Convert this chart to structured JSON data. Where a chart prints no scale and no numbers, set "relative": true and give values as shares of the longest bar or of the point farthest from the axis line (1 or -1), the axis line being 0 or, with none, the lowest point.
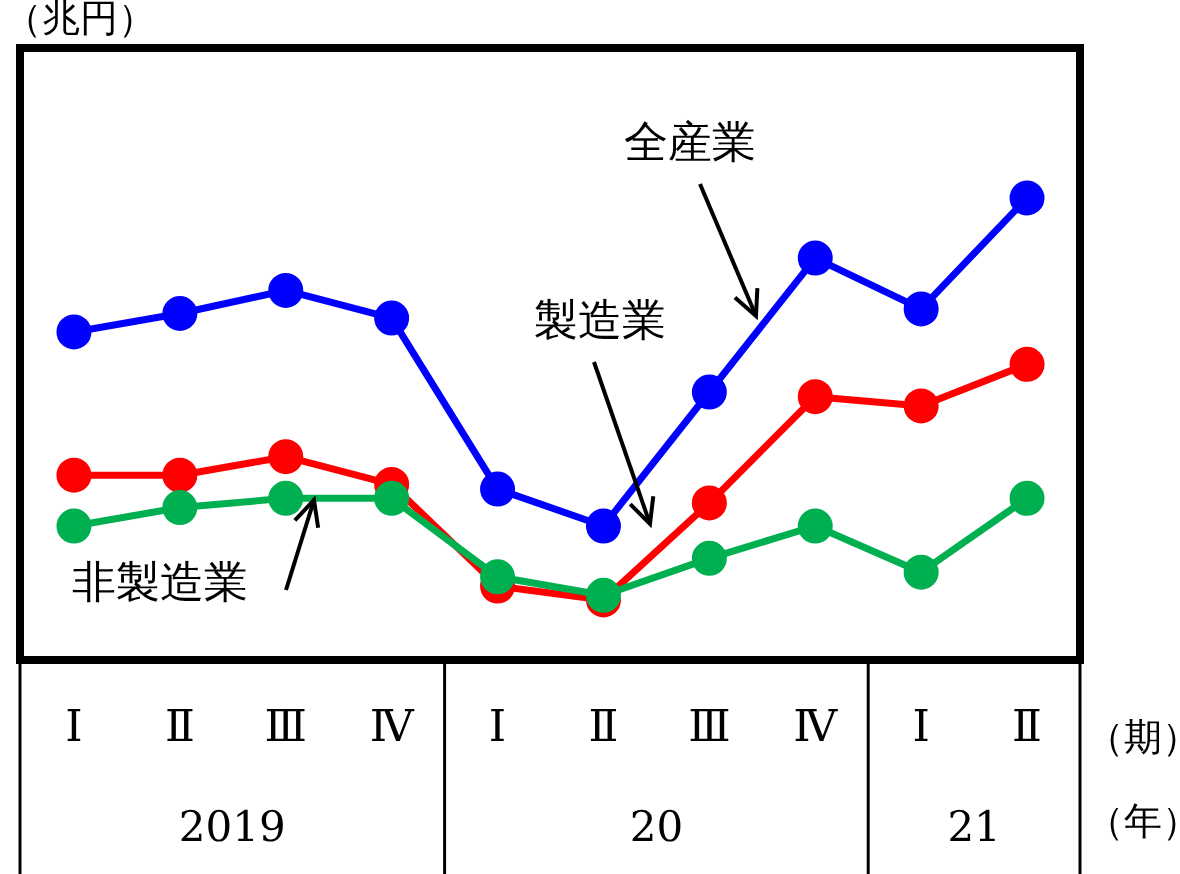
{
  "chart_data": {
    "type": "line",
    "relative": true,
    "ylabel": "（兆円）",
    "xlabel": "（期）",
    "categories": [
      "Ⅰ",
      "Ⅱ",
      "Ⅲ",
      "Ⅳ",
      "Ⅰ",
      "Ⅱ",
      "Ⅲ",
      "Ⅳ",
      "Ⅰ",
      "Ⅱ"
    ],
    "series": [
      {
        "name": "全産業",
        "color": "#0000ff",
        "values": [
          0.71,
          0.75,
          0.8,
          0.74,
          0.37,
          0.29,
          0.58,
          0.87,
          0.76,
          1
        ]
      },
      {
        "name": "製造業",
        "color": "#ff0000",
        "values": [
          0.4,
          0.4,
          0.44,
          0.38,
          0.16,
          0.13,
          0.34,
          0.57,
          0.55,
          0.64
        ]
      },
      {
        "name": "非製造業",
        "color": "#00b050",
        "values": [
          0.29,
          0.33,
          0.35,
          0.35,
          0.18,
          0.14,
          0.22,
          0.29,
          0.19,
          0.35
        ]
      }
    ],
    "annotations": [
      "2019",
      "20",
      "21",
      "（年）"
    ],
    "marker": "circle",
    "line_style": "solid",
    "grid": false,
    "legend": false
  }
}
